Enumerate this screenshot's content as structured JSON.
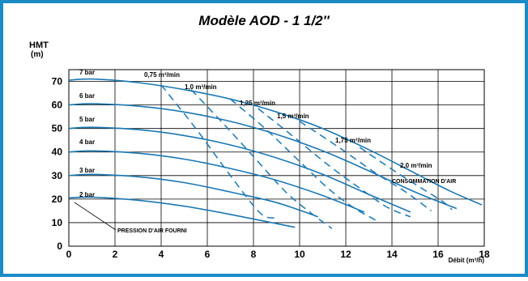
{
  "colors": {
    "border": "#1b8bc6",
    "curve": "#1a78b3",
    "grid": "#000000",
    "plot_bg": "#ffffff",
    "text": "#000000"
  },
  "chart_data": {
    "type": "line",
    "title": "Modèle AOD - 1 1/2''",
    "ylabel_line1": "HMT",
    "ylabel_line2": "(m)",
    "xlabel": "Débit (m³/h)",
    "xlim": [
      0,
      18
    ],
    "ylim": [
      0,
      75
    ],
    "xticks": [
      0,
      2,
      4,
      6,
      8,
      10,
      12,
      14,
      16,
      18
    ],
    "yticks": [
      0,
      10,
      20,
      30,
      40,
      50,
      60,
      70
    ],
    "grid": true,
    "pressure_series": [
      {
        "name": "7 bar",
        "points": [
          [
            0,
            70.5
          ],
          [
            1,
            71
          ],
          [
            3,
            69.5
          ],
          [
            5,
            66.5
          ],
          [
            7,
            62.5
          ],
          [
            9,
            57
          ],
          [
            11,
            50
          ],
          [
            13,
            41
          ],
          [
            15,
            31
          ],
          [
            16.5,
            23.5
          ],
          [
            17.9,
            17.5
          ]
        ]
      },
      {
        "name": "6 bar",
        "points": [
          [
            0,
            60
          ],
          [
            1,
            60.5
          ],
          [
            3,
            59.5
          ],
          [
            5,
            57
          ],
          [
            7,
            53
          ],
          [
            9,
            47.5
          ],
          [
            11,
            40.5
          ],
          [
            13,
            32
          ],
          [
            15,
            23
          ],
          [
            16.8,
            16
          ]
        ]
      },
      {
        "name": "5 bar",
        "points": [
          [
            0,
            50
          ],
          [
            1,
            50.5
          ],
          [
            3,
            49.5
          ],
          [
            5,
            47
          ],
          [
            7,
            43
          ],
          [
            9,
            37.5
          ],
          [
            11,
            30.5
          ],
          [
            13,
            22
          ],
          [
            14.8,
            14.5
          ]
        ]
      },
      {
        "name": "4 bar",
        "points": [
          [
            0,
            40
          ],
          [
            1,
            40.5
          ],
          [
            3,
            39.5
          ],
          [
            5,
            37
          ],
          [
            7,
            33
          ],
          [
            9,
            28
          ],
          [
            11,
            21.5
          ],
          [
            12.8,
            14.5
          ]
        ]
      },
      {
        "name": "3 bar",
        "points": [
          [
            0,
            30
          ],
          [
            1,
            30.5
          ],
          [
            3,
            29.5
          ],
          [
            5,
            27
          ],
          [
            7,
            23
          ],
          [
            9,
            18.5
          ],
          [
            10.8,
            12.5
          ]
        ]
      },
      {
        "name": "2 bar",
        "points": [
          [
            0,
            20.5
          ],
          [
            1,
            20.8
          ],
          [
            3,
            19.5
          ],
          [
            5,
            17
          ],
          [
            7,
            13.5
          ],
          [
            9.8,
            8
          ]
        ]
      }
    ],
    "consumption_series": [
      {
        "name": "0,75 m³/min",
        "points": [
          [
            4.0,
            68.5
          ],
          [
            5.5,
            50
          ],
          [
            7.0,
            30
          ],
          [
            8.3,
            14
          ],
          [
            9.0,
            12
          ]
        ]
      },
      {
        "name": "1,0 m³/min",
        "points": [
          [
            5.3,
            66.5
          ],
          [
            6.7,
            52
          ],
          [
            8.1,
            37
          ],
          [
            9.4,
            23
          ],
          [
            10.5,
            14
          ],
          [
            11.4,
            7.5
          ]
        ]
      },
      {
        "name": "1,25 m³/min",
        "points": [
          [
            7.0,
            62.5
          ],
          [
            8.5,
            50
          ],
          [
            10.0,
            36
          ],
          [
            11.3,
            24
          ],
          [
            12.4,
            16
          ],
          [
            13.4,
            10.5
          ]
        ]
      },
      {
        "name": "1,5 m³/min",
        "points": [
          [
            8.2,
            58.5
          ],
          [
            9.8,
            46
          ],
          [
            11.3,
            34
          ],
          [
            12.7,
            24
          ],
          [
            13.8,
            16.5
          ],
          [
            14.8,
            12.5
          ]
        ]
      },
      {
        "name": "1,75 m³/min",
        "points": [
          [
            10.0,
            53
          ],
          [
            11.7,
            42
          ],
          [
            13.3,
            31
          ],
          [
            14.6,
            23
          ],
          [
            15.7,
            15
          ]
        ]
      },
      {
        "name": "2,0 m³/min",
        "points": [
          [
            12.6,
            42
          ],
          [
            14.1,
            32
          ],
          [
            15.3,
            24.5
          ],
          [
            16.2,
            19
          ],
          [
            16.6,
            15.5
          ]
        ]
      }
    ],
    "consumption_labels": [
      "0,75 m³/min",
      "1,0 m³/min",
      "1,25 m³/min",
      "1,5 m³/min",
      "1,75 m³/min",
      "2,0 m³/min"
    ],
    "pressure_labels": [
      "7 bar",
      "6 bar",
      "5 bar",
      "4 bar",
      "3 bar",
      "2 bar"
    ],
    "annotation_consumption": "CONSOMMATION D'AIR",
    "annotation_pressure": "PRESSION D'AIR FOURNI"
  }
}
